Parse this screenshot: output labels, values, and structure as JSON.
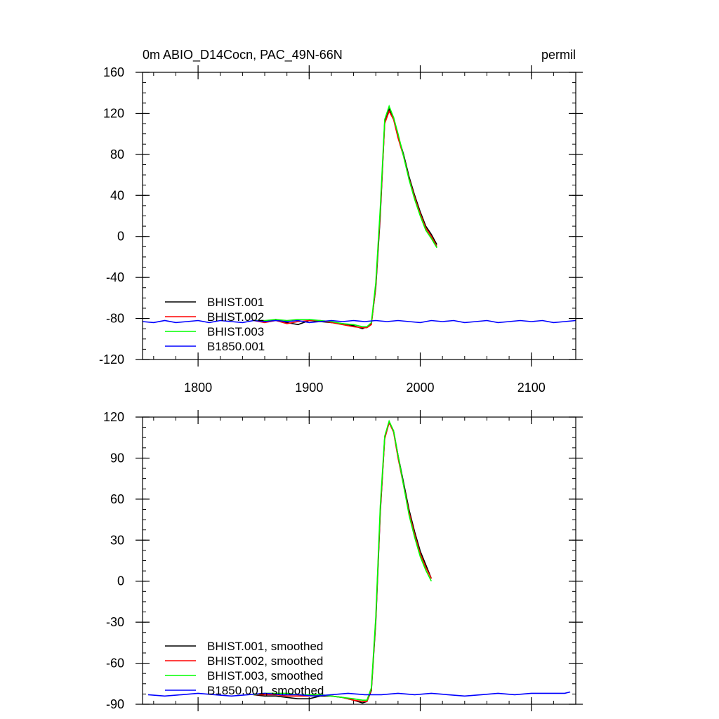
{
  "figure": {
    "title_left": "0m ABIO_D14Cocn, PAC_49N-66N",
    "title_right": "permil"
  },
  "chart_data": [
    {
      "type": "line",
      "xlim": [
        1750,
        2140
      ],
      "ylim": [
        -120,
        160
      ],
      "x_ticks": [
        1800,
        1900,
        2000,
        2100
      ],
      "y_ticks": [
        -120,
        -80,
        -40,
        0,
        40,
        80,
        120,
        160
      ],
      "x_tick_labels": [
        "1800",
        "1900",
        "2000",
        "2100"
      ],
      "y_tick_labels": [
        "-120",
        "-80",
        "-40",
        "0",
        "40",
        "80",
        "120",
        "160"
      ],
      "legend_position": "bottom-left",
      "grid": false,
      "series": [
        {
          "name": "BHIST.001",
          "color": "#000000",
          "points": [
            [
              1850,
              -82
            ],
            [
              1860,
              -83
            ],
            [
              1870,
              -81
            ],
            [
              1880,
              -84
            ],
            [
              1890,
              -86
            ],
            [
              1900,
              -82
            ],
            [
              1910,
              -83
            ],
            [
              1920,
              -84
            ],
            [
              1930,
              -85
            ],
            [
              1940,
              -87
            ],
            [
              1948,
              -90
            ],
            [
              1952,
              -88
            ],
            [
              1956,
              -85
            ],
            [
              1960,
              -50
            ],
            [
              1964,
              20
            ],
            [
              1968,
              112
            ],
            [
              1972,
              124
            ],
            [
              1976,
              116
            ],
            [
              1980,
              98
            ],
            [
              1985,
              80
            ],
            [
              1990,
              58
            ],
            [
              1995,
              40
            ],
            [
              2000,
              24
            ],
            [
              2005,
              10
            ],
            [
              2010,
              2
            ],
            [
              2015,
              -8
            ]
          ]
        },
        {
          "name": "BHIST.002",
          "color": "#ff0000",
          "points": [
            [
              1850,
              -82
            ],
            [
              1860,
              -84
            ],
            [
              1870,
              -82
            ],
            [
              1880,
              -85
            ],
            [
              1890,
              -83
            ],
            [
              1900,
              -82
            ],
            [
              1910,
              -82
            ],
            [
              1920,
              -84
            ],
            [
              1930,
              -86
            ],
            [
              1940,
              -88
            ],
            [
              1948,
              -89
            ],
            [
              1952,
              -89
            ],
            [
              1956,
              -86
            ],
            [
              1960,
              -48
            ],
            [
              1964,
              24
            ],
            [
              1968,
              110
            ],
            [
              1972,
              122
            ],
            [
              1976,
              114
            ],
            [
              1980,
              96
            ],
            [
              1985,
              78
            ],
            [
              1990,
              56
            ],
            [
              1995,
              38
            ],
            [
              2000,
              22
            ],
            [
              2005,
              8
            ],
            [
              2010,
              0
            ],
            [
              2015,
              -10
            ]
          ]
        },
        {
          "name": "BHIST.003",
          "color": "#00ff00",
          "points": [
            [
              1850,
              -82
            ],
            [
              1860,
              -82
            ],
            [
              1870,
              -81
            ],
            [
              1880,
              -82
            ],
            [
              1890,
              -81
            ],
            [
              1900,
              -81
            ],
            [
              1910,
              -82
            ],
            [
              1920,
              -83
            ],
            [
              1930,
              -85
            ],
            [
              1940,
              -86
            ],
            [
              1948,
              -88
            ],
            [
              1952,
              -88
            ],
            [
              1956,
              -84
            ],
            [
              1960,
              -45
            ],
            [
              1964,
              28
            ],
            [
              1968,
              114
            ],
            [
              1972,
              127
            ],
            [
              1976,
              116
            ],
            [
              1980,
              100
            ],
            [
              1985,
              78
            ],
            [
              1990,
              55
            ],
            [
              1995,
              36
            ],
            [
              2000,
              20
            ],
            [
              2005,
              6
            ],
            [
              2010,
              -2
            ],
            [
              2015,
              -11
            ]
          ]
        },
        {
          "name": "B1850.001",
          "color": "#0000ff",
          "points": [
            [
              1750,
              -83
            ],
            [
              1760,
              -84
            ],
            [
              1770,
              -82
            ],
            [
              1780,
              -84
            ],
            [
              1790,
              -83
            ],
            [
              1800,
              -82
            ],
            [
              1810,
              -84
            ],
            [
              1820,
              -82
            ],
            [
              1830,
              -83
            ],
            [
              1840,
              -84
            ],
            [
              1850,
              -82
            ],
            [
              1860,
              -83
            ],
            [
              1870,
              -82
            ],
            [
              1880,
              -83
            ],
            [
              1890,
              -82
            ],
            [
              1900,
              -84
            ],
            [
              1910,
              -83
            ],
            [
              1920,
              -82
            ],
            [
              1930,
              -83
            ],
            [
              1940,
              -82
            ],
            [
              1950,
              -83
            ],
            [
              1960,
              -82
            ],
            [
              1970,
              -83
            ],
            [
              1980,
              -82
            ],
            [
              1990,
              -83
            ],
            [
              2000,
              -84
            ],
            [
              2010,
              -82
            ],
            [
              2020,
              -83
            ],
            [
              2030,
              -82
            ],
            [
              2040,
              -84
            ],
            [
              2050,
              -83
            ],
            [
              2060,
              -82
            ],
            [
              2070,
              -84
            ],
            [
              2080,
              -83
            ],
            [
              2090,
              -82
            ],
            [
              2100,
              -83
            ],
            [
              2110,
              -82
            ],
            [
              2120,
              -84
            ],
            [
              2130,
              -83
            ],
            [
              2140,
              -82
            ]
          ]
        }
      ]
    },
    {
      "type": "line",
      "xlim": [
        1750,
        2140
      ],
      "ylim": [
        -90,
        120
      ],
      "x_ticks": [
        1800,
        1900,
        2000,
        2100
      ],
      "y_ticks": [
        -90,
        -60,
        -30,
        0,
        30,
        60,
        90,
        120
      ],
      "x_tick_labels": [],
      "y_tick_labels": [
        "-90",
        "-60",
        "-30",
        "0",
        "30",
        "60",
        "90",
        "120"
      ],
      "legend_position": "bottom-left",
      "grid": false,
      "series": [
        {
          "name": "BHIST.001, smoothed",
          "color": "#000000",
          "points": [
            [
              1850,
              -83
            ],
            [
              1860,
              -84
            ],
            [
              1870,
              -84
            ],
            [
              1880,
              -85
            ],
            [
              1890,
              -86
            ],
            [
              1900,
              -86
            ],
            [
              1910,
              -84
            ],
            [
              1920,
              -84
            ],
            [
              1930,
              -85
            ],
            [
              1940,
              -87
            ],
            [
              1948,
              -89
            ],
            [
              1952,
              -88
            ],
            [
              1956,
              -80
            ],
            [
              1960,
              -30
            ],
            [
              1964,
              50
            ],
            [
              1968,
              105
            ],
            [
              1972,
              116
            ],
            [
              1976,
              110
            ],
            [
              1980,
              92
            ],
            [
              1985,
              72
            ],
            [
              1990,
              52
            ],
            [
              1995,
              36
            ],
            [
              2000,
              22
            ],
            [
              2005,
              12
            ],
            [
              2010,
              2
            ]
          ]
        },
        {
          "name": "BHIST.002, smoothed",
          "color": "#ff0000",
          "points": [
            [
              1850,
              -83
            ],
            [
              1860,
              -83
            ],
            [
              1870,
              -83
            ],
            [
              1880,
              -84
            ],
            [
              1890,
              -84
            ],
            [
              1900,
              -84
            ],
            [
              1910,
              -83
            ],
            [
              1920,
              -84
            ],
            [
              1930,
              -85
            ],
            [
              1940,
              -87
            ],
            [
              1948,
              -88
            ],
            [
              1952,
              -88
            ],
            [
              1956,
              -79
            ],
            [
              1960,
              -28
            ],
            [
              1964,
              52
            ],
            [
              1968,
              104
            ],
            [
              1972,
              116
            ],
            [
              1976,
              109
            ],
            [
              1980,
              90
            ],
            [
              1985,
              70
            ],
            [
              1990,
              50
            ],
            [
              1995,
              34
            ],
            [
              2000,
              20
            ],
            [
              2005,
              10
            ],
            [
              2010,
              2
            ]
          ]
        },
        {
          "name": "BHIST.003, smoothed",
          "color": "#00ff00",
          "points": [
            [
              1850,
              -83
            ],
            [
              1860,
              -82
            ],
            [
              1870,
              -82
            ],
            [
              1880,
              -82
            ],
            [
              1890,
              -83
            ],
            [
              1900,
              -83
            ],
            [
              1910,
              -83
            ],
            [
              1920,
              -84
            ],
            [
              1930,
              -85
            ],
            [
              1940,
              -86
            ],
            [
              1948,
              -87
            ],
            [
              1952,
              -87
            ],
            [
              1956,
              -78
            ],
            [
              1960,
              -26
            ],
            [
              1964,
              55
            ],
            [
              1968,
              106
            ],
            [
              1972,
              117
            ],
            [
              1976,
              110
            ],
            [
              1980,
              92
            ],
            [
              1985,
              70
            ],
            [
              1990,
              48
            ],
            [
              1995,
              32
            ],
            [
              2000,
              18
            ],
            [
              2005,
              8
            ],
            [
              2010,
              0
            ]
          ]
        },
        {
          "name": "B1850.001, smoothed",
          "color": "#0000ff",
          "points": [
            [
              1755,
              -83
            ],
            [
              1770,
              -84
            ],
            [
              1785,
              -83
            ],
            [
              1800,
              -82
            ],
            [
              1815,
              -83
            ],
            [
              1830,
              -84
            ],
            [
              1845,
              -83
            ],
            [
              1860,
              -82
            ],
            [
              1875,
              -83
            ],
            [
              1890,
              -83
            ],
            [
              1905,
              -84
            ],
            [
              1920,
              -83
            ],
            [
              1935,
              -82
            ],
            [
              1950,
              -83
            ],
            [
              1965,
              -83
            ],
            [
              1980,
              -82
            ],
            [
              1995,
              -83
            ],
            [
              2010,
              -82
            ],
            [
              2025,
              -83
            ],
            [
              2040,
              -84
            ],
            [
              2055,
              -83
            ],
            [
              2070,
              -82
            ],
            [
              2085,
              -83
            ],
            [
              2100,
              -82
            ],
            [
              2115,
              -82
            ],
            [
              2130,
              -82
            ],
            [
              2135,
              -81
            ]
          ]
        }
      ]
    }
  ]
}
